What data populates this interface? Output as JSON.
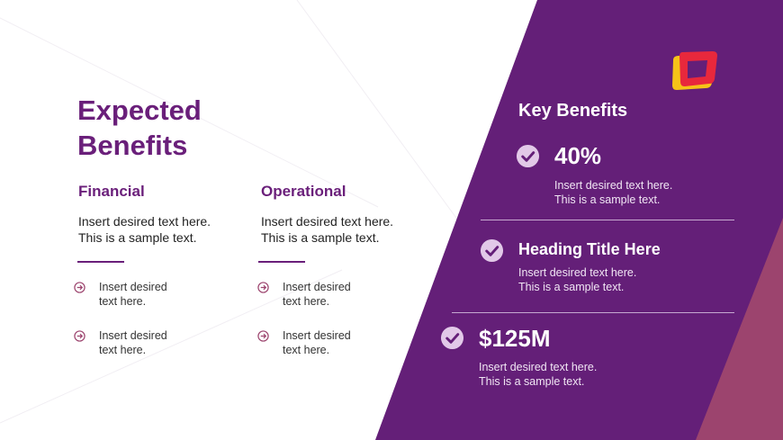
{
  "slide": {
    "title": "Expected\nBenefits",
    "columns": [
      {
        "heading": "Financial",
        "text": "Insert desired text here.\nThis is a sample text.",
        "bullets": [
          {
            "icon": "circle-arrow-right-icon",
            "text": "Insert desired\ntext here."
          },
          {
            "icon": "circle-arrow-right-icon",
            "text": "Insert desired\ntext here."
          }
        ]
      },
      {
        "heading": "Operational",
        "text": "Insert desired text here.\nThis is a sample text.",
        "bullets": [
          {
            "icon": "circle-arrow-right-icon",
            "text": "Insert desired\ntext here."
          },
          {
            "icon": "circle-arrow-right-icon",
            "text": "Insert desired\ntext here."
          }
        ]
      }
    ]
  },
  "key_benefits": {
    "title": "Key Benefits",
    "items": [
      {
        "icon": "check-circle-icon",
        "heading": "40%",
        "text": "Insert desired text here.\nThis is a sample text."
      },
      {
        "icon": "check-circle-icon",
        "heading": "Heading Title Here",
        "text": "Insert desired text here.\nThis is a sample text."
      },
      {
        "icon": "check-circle-icon",
        "heading": "$125M",
        "text": "Insert desired text here.\nThis is a sample text."
      }
    ]
  },
  "colors": {
    "primary_purple": "#6a1f7a",
    "panel_purple": "#641f78",
    "accent_mauve": "#9c446e",
    "logo_red": "#e8283c",
    "logo_yellow": "#f6c318"
  }
}
